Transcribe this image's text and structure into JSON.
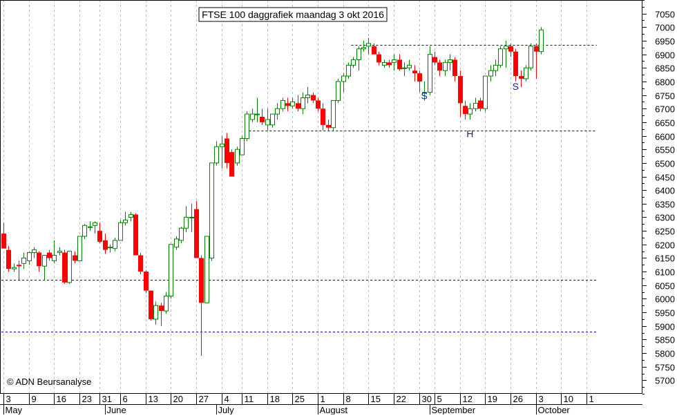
{
  "chart_data": {
    "type": "candlestick",
    "title": "FTSE 100 daggrafiek maandag 3 okt 2016",
    "copyright": "© ADN Beursanalyse",
    "colors": {
      "up": "#008000",
      "down": "#ff0000",
      "guides": "#0000aa",
      "grid": "#bbbbbb",
      "annotation": "#1a1aaa"
    },
    "ylim": [
      5650,
      7100
    ],
    "y_ticks": [
      5700,
      5750,
      5800,
      5850,
      5900,
      5950,
      6000,
      6050,
      6100,
      6150,
      6200,
      6250,
      6300,
      6350,
      6400,
      6450,
      6500,
      6550,
      6600,
      6650,
      6700,
      6750,
      6800,
      6850,
      6900,
      6950,
      7000,
      7050
    ],
    "grid": true,
    "x_ticks": [
      {
        "i": 0,
        "label": "3"
      },
      {
        "i": 5,
        "label": "9"
      },
      {
        "i": 10,
        "label": "16"
      },
      {
        "i": 15,
        "label": "23"
      },
      {
        "i": 19,
        "label": "31"
      },
      {
        "i": 23,
        "label": "6"
      },
      {
        "i": 28,
        "label": "13"
      },
      {
        "i": 33,
        "label": "20"
      },
      {
        "i": 38,
        "label": "27"
      },
      {
        "i": 43,
        "label": "4"
      },
      {
        "i": 47,
        "label": "11"
      },
      {
        "i": 52,
        "label": "18"
      },
      {
        "i": 57,
        "label": "25"
      },
      {
        "i": 62,
        "label": "1"
      },
      {
        "i": 67,
        "label": "8"
      },
      {
        "i": 72,
        "label": "15"
      },
      {
        "i": 77,
        "label": "22"
      },
      {
        "i": 82,
        "label": "30"
      },
      {
        "i": 85,
        "label": "5"
      },
      {
        "i": 90,
        "label": "12"
      },
      {
        "i": 95,
        "label": "19"
      },
      {
        "i": 100,
        "label": "26"
      },
      {
        "i": 105,
        "label": "3"
      },
      {
        "i": 110,
        "label": "10"
      },
      {
        "i": 115,
        "label": "1"
      }
    ],
    "months": [
      {
        "i": 0,
        "label": "May"
      },
      {
        "i": 20,
        "label": "June"
      },
      {
        "i": 42,
        "label": "July"
      },
      {
        "i": 62,
        "label": "August"
      },
      {
        "i": 84,
        "label": "September"
      },
      {
        "i": 105,
        "label": "October"
      }
    ],
    "hlines": [
      {
        "y": 6935,
        "from": 69,
        "to": 117
      },
      {
        "y": 6620,
        "from": 48,
        "to": 117
      },
      {
        "y": 6070,
        "from": 0,
        "to": 117
      },
      {
        "y": 5880,
        "from": 0,
        "to": 117
      }
    ],
    "annotations": [
      {
        "text": "S",
        "i": 83,
        "y": 6750
      },
      {
        "text": "H",
        "i": 92,
        "y": 6610
      },
      {
        "text": "S",
        "i": 101,
        "y": 6785
      }
    ],
    "candles": [
      [
        6240,
        6280,
        6185,
        6185
      ],
      [
        6180,
        6195,
        6100,
        6110
      ],
      [
        6110,
        6130,
        6100,
        6115
      ],
      [
        6125,
        6140,
        6070,
        6120
      ],
      [
        6130,
        6170,
        6110,
        6150
      ],
      [
        6140,
        6175,
        6125,
        6170
      ],
      [
        6170,
        6190,
        6150,
        6180
      ],
      [
        6170,
        6175,
        6100,
        6120
      ],
      [
        6120,
        6160,
        6070,
        6160
      ],
      [
        6170,
        6180,
        6140,
        6150
      ],
      [
        6140,
        6215,
        6130,
        6160
      ],
      [
        6170,
        6190,
        6160,
        6175
      ],
      [
        6170,
        6180,
        6055,
        6060
      ],
      [
        6060,
        6175,
        6055,
        6175
      ],
      [
        6160,
        6175,
        6130,
        6140
      ],
      [
        6140,
        6230,
        6140,
        6230
      ],
      [
        6230,
        6275,
        6220,
        6270
      ],
      [
        6265,
        6285,
        6250,
        6265
      ],
      [
        6270,
        6285,
        6240,
        6280
      ],
      [
        6250,
        6280,
        6205,
        6210
      ],
      [
        6215,
        6240,
        6165,
        6180
      ],
      [
        6190,
        6200,
        6170,
        6190
      ],
      [
        6185,
        6225,
        6175,
        6215
      ],
      [
        6215,
        6290,
        6215,
        6280
      ],
      [
        6280,
        6320,
        6270,
        6290
      ],
      [
        6300,
        6320,
        6285,
        6310
      ],
      [
        6310,
        6315,
        6160,
        6160
      ],
      [
        6160,
        6170,
        6090,
        6100
      ],
      [
        6100,
        6105,
        6020,
        6030
      ],
      [
        6030,
        6030,
        5920,
        5925
      ],
      [
        5925,
        5990,
        5905,
        5975
      ],
      [
        5975,
        5985,
        5900,
        5955
      ],
      [
        5955,
        6025,
        5945,
        6010
      ],
      [
        6010,
        6200,
        6000,
        6200
      ],
      [
        6190,
        6230,
        6180,
        6220
      ],
      [
        6215,
        6265,
        6205,
        6260
      ],
      [
        6260,
        6340,
        6245,
        6300
      ],
      [
        6300,
        6350,
        6245,
        6300
      ],
      [
        6330,
        6360,
        6150,
        6150
      ],
      [
        6150,
        6160,
        5790,
        5985
      ],
      [
        5985,
        6230,
        5985,
        6230
      ],
      [
        6150,
        6500,
        6140,
        6500
      ],
      [
        6500,
        6580,
        6490,
        6560
      ],
      [
        6560,
        6600,
        6480,
        6570
      ],
      [
        6590,
        6610,
        6480,
        6500
      ],
      [
        6540,
        6550,
        6450,
        6450
      ],
      [
        6500,
        6560,
        6490,
        6550
      ],
      [
        6530,
        6600,
        6530,
        6590
      ],
      [
        6590,
        6690,
        6580,
        6680
      ],
      [
        6660,
        6700,
        6650,
        6680
      ],
      [
        6680,
        6740,
        6650,
        6680
      ],
      [
        6670,
        6700,
        6640,
        6650
      ],
      [
        6640,
        6700,
        6620,
        6660
      ],
      [
        6640,
        6680,
        6630,
        6680
      ],
      [
        6680,
        6720,
        6660,
        6700
      ],
      [
        6700,
        6740,
        6690,
        6730
      ],
      [
        6720,
        6740,
        6690,
        6710
      ],
      [
        6710,
        6740,
        6700,
        6725
      ],
      [
        6720,
        6750,
        6690,
        6700
      ],
      [
        6700,
        6760,
        6680,
        6740
      ],
      [
        6740,
        6780,
        6720,
        6750
      ],
      [
        6750,
        6760,
        6720,
        6730
      ],
      [
        6730,
        6740,
        6690,
        6700
      ],
      [
        6700,
        6720,
        6620,
        6640
      ],
      [
        6640,
        6660,
        6620,
        6630
      ],
      [
        6630,
        6730,
        6620,
        6730
      ],
      [
        6730,
        6810,
        6720,
        6800
      ],
      [
        6800,
        6830,
        6760,
        6820
      ],
      [
        6820,
        6870,
        6810,
        6860
      ],
      [
        6860,
        6890,
        6850,
        6880
      ],
      [
        6880,
        6930,
        6840,
        6920
      ],
      [
        6920,
        6950,
        6910,
        6925
      ],
      [
        6930,
        6960,
        6900,
        6940
      ],
      [
        6930,
        6940,
        6900,
        6900
      ],
      [
        6900,
        6910,
        6860,
        6870
      ],
      [
        6860,
        6880,
        6850,
        6870
      ],
      [
        6870,
        6880,
        6850,
        6860
      ],
      [
        6870,
        6900,
        6840,
        6880
      ],
      [
        6880,
        6900,
        6840,
        6845
      ],
      [
        6850,
        6870,
        6820,
        6850
      ],
      [
        6850,
        6880,
        6840,
        6860
      ],
      [
        6840,
        6860,
        6800,
        6830
      ],
      [
        6830,
        6840,
        6760,
        6800
      ],
      [
        6760,
        6800,
        6730,
        6760
      ],
      [
        6760,
        6930,
        6750,
        6900
      ],
      [
        6890,
        6910,
        6860,
        6870
      ],
      [
        6870,
        6880,
        6820,
        6840
      ],
      [
        6840,
        6880,
        6820,
        6870
      ],
      [
        6870,
        6900,
        6840,
        6880
      ],
      [
        6880,
        6890,
        6800,
        6820
      ],
      [
        6820,
        6840,
        6670,
        6720
      ],
      [
        6710,
        6730,
        6660,
        6680
      ],
      [
        6680,
        6720,
        6660,
        6700
      ],
      [
        6700,
        6740,
        6690,
        6720
      ],
      [
        6730,
        6740,
        6690,
        6700
      ],
      [
        6700,
        6820,
        6690,
        6820
      ],
      [
        6820,
        6860,
        6800,
        6840
      ],
      [
        6840,
        6880,
        6820,
        6860
      ],
      [
        6860,
        6930,
        6850,
        6920
      ],
      [
        6920,
        6950,
        6850,
        6930
      ],
      [
        6930,
        6940,
        6890,
        6910
      ],
      [
        6910,
        6920,
        6800,
        6820
      ],
      [
        6820,
        6840,
        6780,
        6810
      ],
      [
        6810,
        6860,
        6800,
        6850
      ],
      [
        6850,
        6940,
        6840,
        6930
      ],
      [
        6930,
        6940,
        6810,
        6910
      ],
      [
        6910,
        7000,
        6900,
        6990
      ]
    ]
  }
}
